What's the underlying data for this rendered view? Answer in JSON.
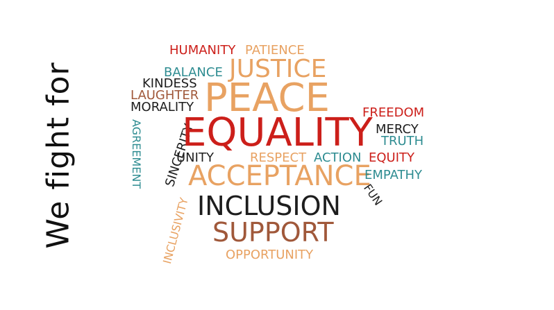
{
  "side_text": "We fight for",
  "colors": {
    "red": "#cc1f1a",
    "orange": "#e8a262",
    "teal": "#2e8c91",
    "black": "#1d1d1d",
    "brown": "#a0583a"
  },
  "words": {
    "humanity": "HUMANITY",
    "patience": "PATIENCE",
    "justice": "JUSTICE",
    "balance": "BALANCE",
    "kindess": "KINDESS",
    "laughter": "LAUGHTER",
    "morality": "MORALITY",
    "peace": "PEACE",
    "freedom": "FREEDOM",
    "agreement": "AGREEMENT",
    "sincerity": "SINCERITY",
    "equality": "EQUALITY",
    "mercy": "MERCY",
    "truth": "TRUTH",
    "unity": "UNITY",
    "respect": "RESPECT",
    "action": "ACTION",
    "equity": "EQUITY",
    "acceptance": "ACCEPTANCE",
    "empathy": "EMPATHY",
    "fun": "FUN",
    "inclusivity": "INCLUSIVITY",
    "inclusion": "INCLUSION",
    "support": "SUPPORT",
    "opportunity": "OPPORTUNITY"
  }
}
